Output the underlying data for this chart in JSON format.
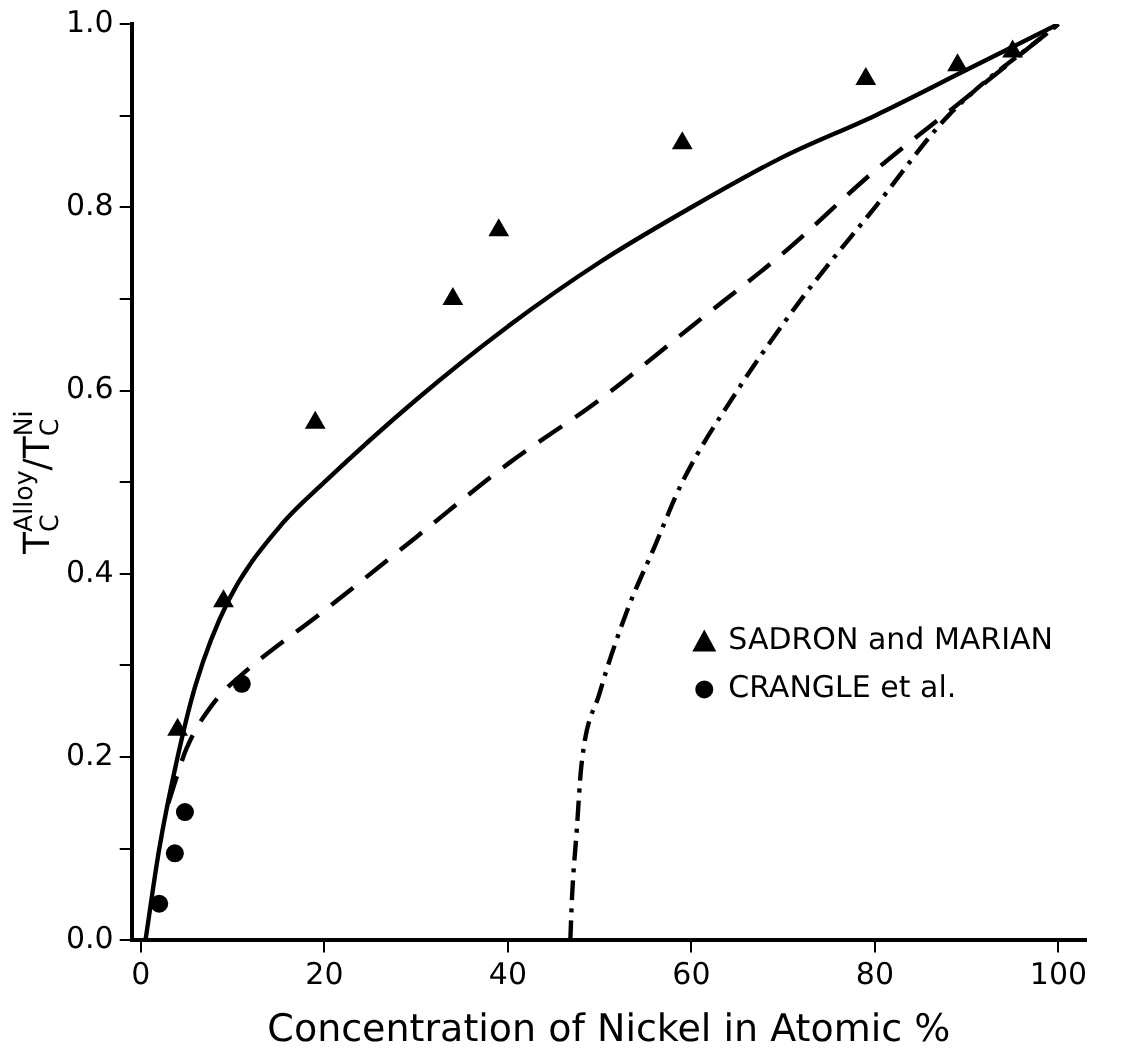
{
  "chart_data": {
    "type": "line",
    "xlabel": "Concentration of Nickel in Atomic %",
    "ylabel": "T$_{C}$$^{Alloy}$/T$_{C}$$^{Ni}$",
    "xlim": [
      -1,
      103
    ],
    "xticks": [
      0,
      20,
      40,
      60,
      80,
      100
    ],
    "ylim": [
      0,
      1.0
    ],
    "yticks": [
      {
        "value": 0,
        "label": "0.0"
      },
      {
        "value": 0.1,
        "label": null
      },
      {
        "value": 0.2,
        "label": "0.2"
      },
      {
        "value": 0.3,
        "label": null
      },
      {
        "value": 0.4,
        "label": "0.4"
      },
      {
        "value": 0.5,
        "label": null
      },
      {
        "value": 0.6,
        "label": "0.6"
      },
      {
        "value": 0.7,
        "label": null
      },
      {
        "value": 0.8,
        "label": "0.8"
      },
      {
        "value": 0.9,
        "label": null
      },
      {
        "value": 1.0,
        "label": "1.0"
      }
    ],
    "grid": false,
    "legend": "right",
    "series": [
      {
        "color": "#000000",
        "line_style": "solid",
        "marker": "none",
        "x": [
          0.5,
          2,
          4,
          6,
          9.5,
          15,
          20,
          30,
          40,
          50,
          60,
          70,
          80,
          90,
          100
        ],
        "values": [
          0,
          0.1,
          0.2,
          0.28,
          0.37,
          0.45,
          0.5,
          0.59,
          0.67,
          0.74,
          0.8,
          0.855,
          0.9,
          0.95,
          1.0
        ]
      },
      {
        "color": "#000000",
        "line_style": "dashed",
        "marker": "none",
        "x": [
          3,
          5,
          8,
          11,
          20,
          30,
          40,
          50,
          60,
          70,
          80,
          90,
          100
        ],
        "values": [
          0.15,
          0.21,
          0.26,
          0.29,
          0.36,
          0.44,
          0.52,
          0.59,
          0.67,
          0.75,
          0.84,
          0.92,
          1.0
        ]
      },
      {
        "color": "#000000",
        "line_style": "dashdot",
        "marker": "none",
        "x": [
          46.8,
          47,
          47.5,
          48,
          50,
          53,
          56,
          59,
          65,
          72,
          80,
          88,
          100
        ],
        "values": [
          0,
          0.05,
          0.12,
          0.19,
          0.27,
          0.36,
          0.43,
          0.5,
          0.6,
          0.7,
          0.8,
          0.9,
          1.0
        ]
      },
      {
        "type": "scatter",
        "name": "SADRON and MARIAN",
        "color": "#000000",
        "marker": "triangle",
        "x": [
          4,
          9,
          19,
          34,
          39,
          59,
          79,
          89,
          95
        ],
        "values": [
          0.23,
          0.37,
          0.565,
          0.7,
          0.775,
          0.87,
          0.94,
          0.955,
          0.97
        ]
      },
      {
        "type": "scatter",
        "name": "CRANGLE et al.",
        "color": "#000000",
        "marker": "circle",
        "x": [
          2,
          3.7,
          4.8,
          11
        ],
        "values": [
          0.04,
          0.095,
          0.14,
          0.28
        ]
      }
    ]
  }
}
